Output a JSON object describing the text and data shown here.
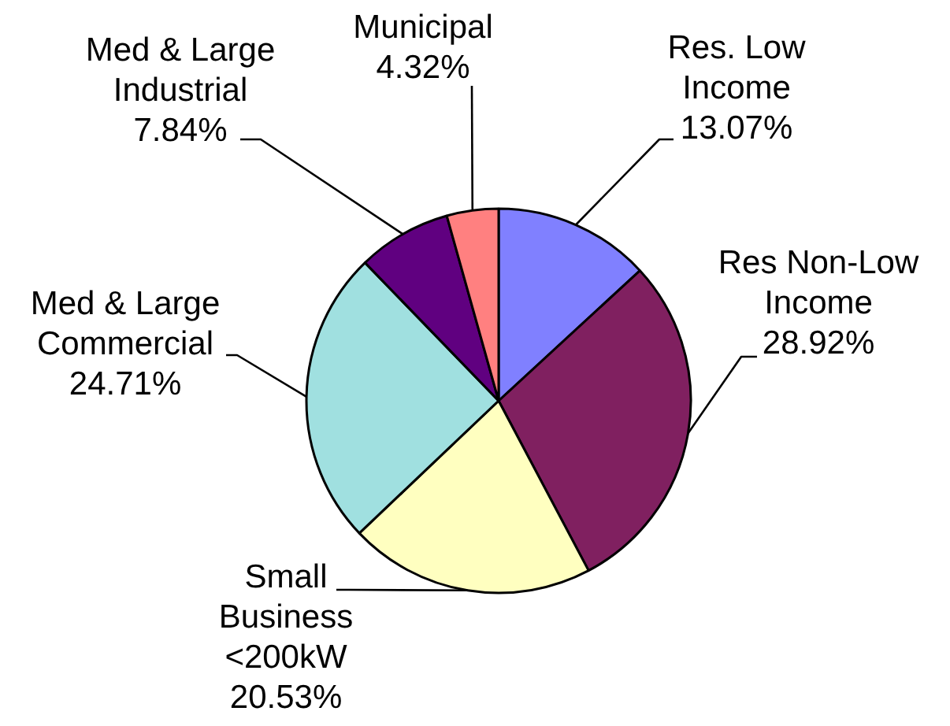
{
  "chart_data": {
    "type": "pie",
    "categories": [
      "Res. Low Income",
      "Res Non-Low Income",
      "Small Business <200kW",
      "Med & Large Commercial",
      "Med & Large Industrial",
      "Municipal"
    ],
    "values": [
      13.07,
      28.92,
      20.53,
      24.71,
      7.84,
      4.32
    ],
    "colors": [
      "#8080ff",
      "#802060",
      "#ffffc0",
      "#a0e0e0",
      "#600080",
      "#ff8080"
    ],
    "value_labels": [
      "13.07%",
      "28.92%",
      "20.53%",
      "24.71%",
      "7.84%",
      "4.32%"
    ]
  }
}
